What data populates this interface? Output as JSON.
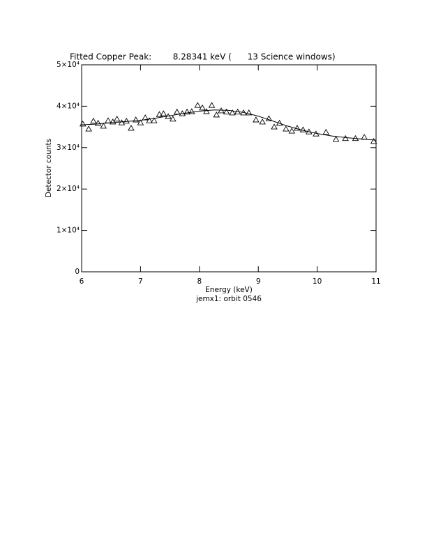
{
  "chart_data": {
    "type": "scatter",
    "title": "Fitted Copper Peak:        8.28341 keV (      13 Science windows)",
    "xlabel": "Energy (keV)",
    "subtitle": "jemx1: orbit 0546",
    "ylabel": "Detector counts",
    "xlim": [
      6,
      11
    ],
    "xticks": [
      6,
      7,
      8,
      9,
      10,
      11
    ],
    "ylim": [
      0,
      50000
    ],
    "yticks": [
      0,
      {
        "value": 10000,
        "label": "1×10⁴"
      },
      {
        "value": 20000,
        "label": "2×10⁴"
      },
      {
        "value": 30000,
        "label": "3×10⁴"
      },
      {
        "value": 40000,
        "label": "4×10⁴"
      },
      {
        "value": 50000,
        "label": "5×10⁴"
      }
    ],
    "series": [
      {
        "type": "scatter",
        "marker": "triangle",
        "color": "#000000",
        "x": [
          6.02,
          6.12,
          6.2,
          6.28,
          6.37,
          6.45,
          6.53,
          6.6,
          6.68,
          6.76,
          6.84,
          6.92,
          7.0,
          7.08,
          7.15,
          7.23,
          7.32,
          7.39,
          7.47,
          7.55,
          7.62,
          7.71,
          7.79,
          7.87,
          7.97,
          8.05,
          8.12,
          8.21,
          8.29,
          8.37,
          8.46,
          8.56,
          8.65,
          8.75,
          8.84,
          8.96,
          9.07,
          9.18,
          9.27,
          9.36,
          9.47,
          9.57,
          9.66,
          9.76,
          9.86,
          9.98,
          10.15,
          10.32,
          10.48,
          10.65,
          10.8,
          10.96
        ],
        "values": [
          35700,
          34500,
          36400,
          35900,
          35200,
          36500,
          36200,
          36900,
          36000,
          36400,
          34700,
          36700,
          36000,
          37200,
          36500,
          36500,
          38000,
          38200,
          37500,
          36900,
          38600,
          38200,
          38600,
          38700,
          40200,
          39600,
          38700,
          40200,
          37900,
          38900,
          38600,
          38400,
          38600,
          38400,
          38400,
          36700,
          36200,
          37000,
          35000,
          35900,
          34500,
          34000,
          34700,
          34300,
          33800,
          33300,
          33700,
          32000,
          32200,
          32200,
          32500,
          31500
        ]
      },
      {
        "type": "line",
        "color": "#000000",
        "x": [
          6,
          6.25,
          6.5,
          6.75,
          7,
          7.25,
          7.5,
          7.75,
          8,
          8.25,
          8.5,
          8.75,
          9,
          9.25,
          9.5,
          9.75,
          10,
          10.25,
          10.5,
          10.75,
          11
        ],
        "values": [
          35500,
          35700,
          36000,
          36300,
          36600,
          37100,
          37700,
          38300,
          38800,
          39100,
          39000,
          38500,
          37600,
          36400,
          35200,
          34200,
          33400,
          32800,
          32400,
          32100,
          31800
        ]
      }
    ]
  }
}
